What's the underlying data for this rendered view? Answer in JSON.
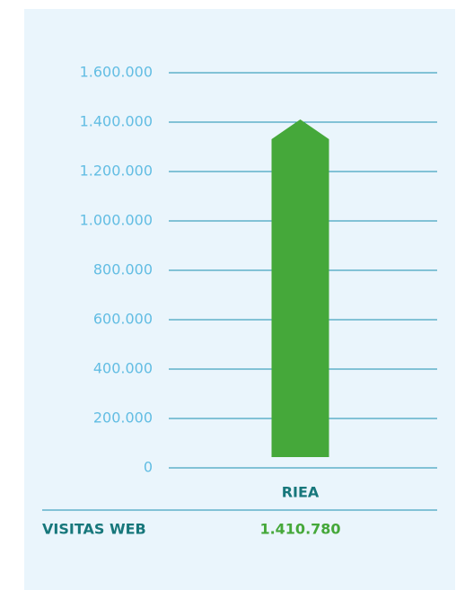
{
  "chart_data": {
    "type": "bar",
    "categories": [
      "RIEA"
    ],
    "series": [
      {
        "name": "VISITAS WEB",
        "color": "#45a83a",
        "values": [
          1410780
        ],
        "value_labels": [
          "1.410.780"
        ]
      }
    ],
    "ylim": [
      0,
      1600000
    ],
    "yticks": [
      0,
      {
        "value": 200000,
        "label": "200.000"
      },
      {
        "value": 400000,
        "label": "400.000"
      },
      {
        "value": 600000,
        "label": "600.000"
      },
      {
        "value": 800000,
        "label": "800.000"
      },
      {
        "value": 1000000,
        "label": "1.000.000"
      },
      {
        "value": 1200000,
        "label": "1.200.000"
      },
      {
        "value": 1400000,
        "label": "1.400.000"
      },
      {
        "value": 1600000,
        "label": "1.600.000"
      }
    ],
    "grid": true
  }
}
